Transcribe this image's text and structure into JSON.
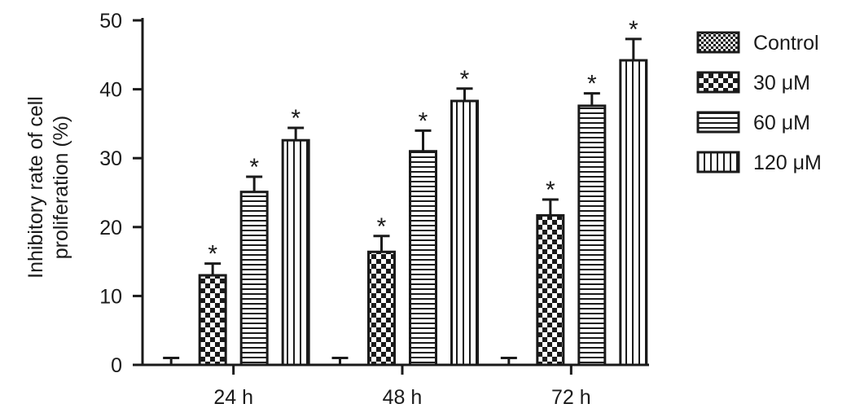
{
  "chart_data": {
    "type": "bar",
    "title": "",
    "ylabel_lines": [
      "Inhibitory rate of cell",
      "proliferation (%)"
    ],
    "xlabel": "",
    "categories": [
      "24 h",
      "48 h",
      "72 h"
    ],
    "ylim": [
      0,
      50
    ],
    "yticks": [
      0,
      10,
      20,
      30,
      40,
      50
    ],
    "grid": false,
    "legend_position": "right",
    "series": [
      {
        "name": "Control",
        "pattern": "fine-check",
        "values": [
          0,
          0,
          0
        ],
        "errors": [
          1.0,
          1.0,
          1.0
        ],
        "significant": [
          false,
          false,
          false
        ]
      },
      {
        "name": "30 μM",
        "pattern": "checker",
        "values": [
          13.0,
          16.4,
          21.7
        ],
        "errors": [
          1.7,
          2.3,
          2.3
        ],
        "significant": [
          true,
          true,
          true
        ]
      },
      {
        "name": "60 μM",
        "pattern": "horizontal-lines",
        "values": [
          25.1,
          31.0,
          37.6
        ],
        "errors": [
          2.2,
          3.0,
          1.8
        ],
        "significant": [
          true,
          true,
          true
        ]
      },
      {
        "name": "120 μM",
        "pattern": "vertical-lines",
        "values": [
          32.6,
          38.3,
          44.2
        ],
        "errors": [
          1.8,
          1.8,
          3.1
        ],
        "significant": [
          true,
          true,
          true
        ]
      }
    ],
    "significance_marker": "*"
  }
}
